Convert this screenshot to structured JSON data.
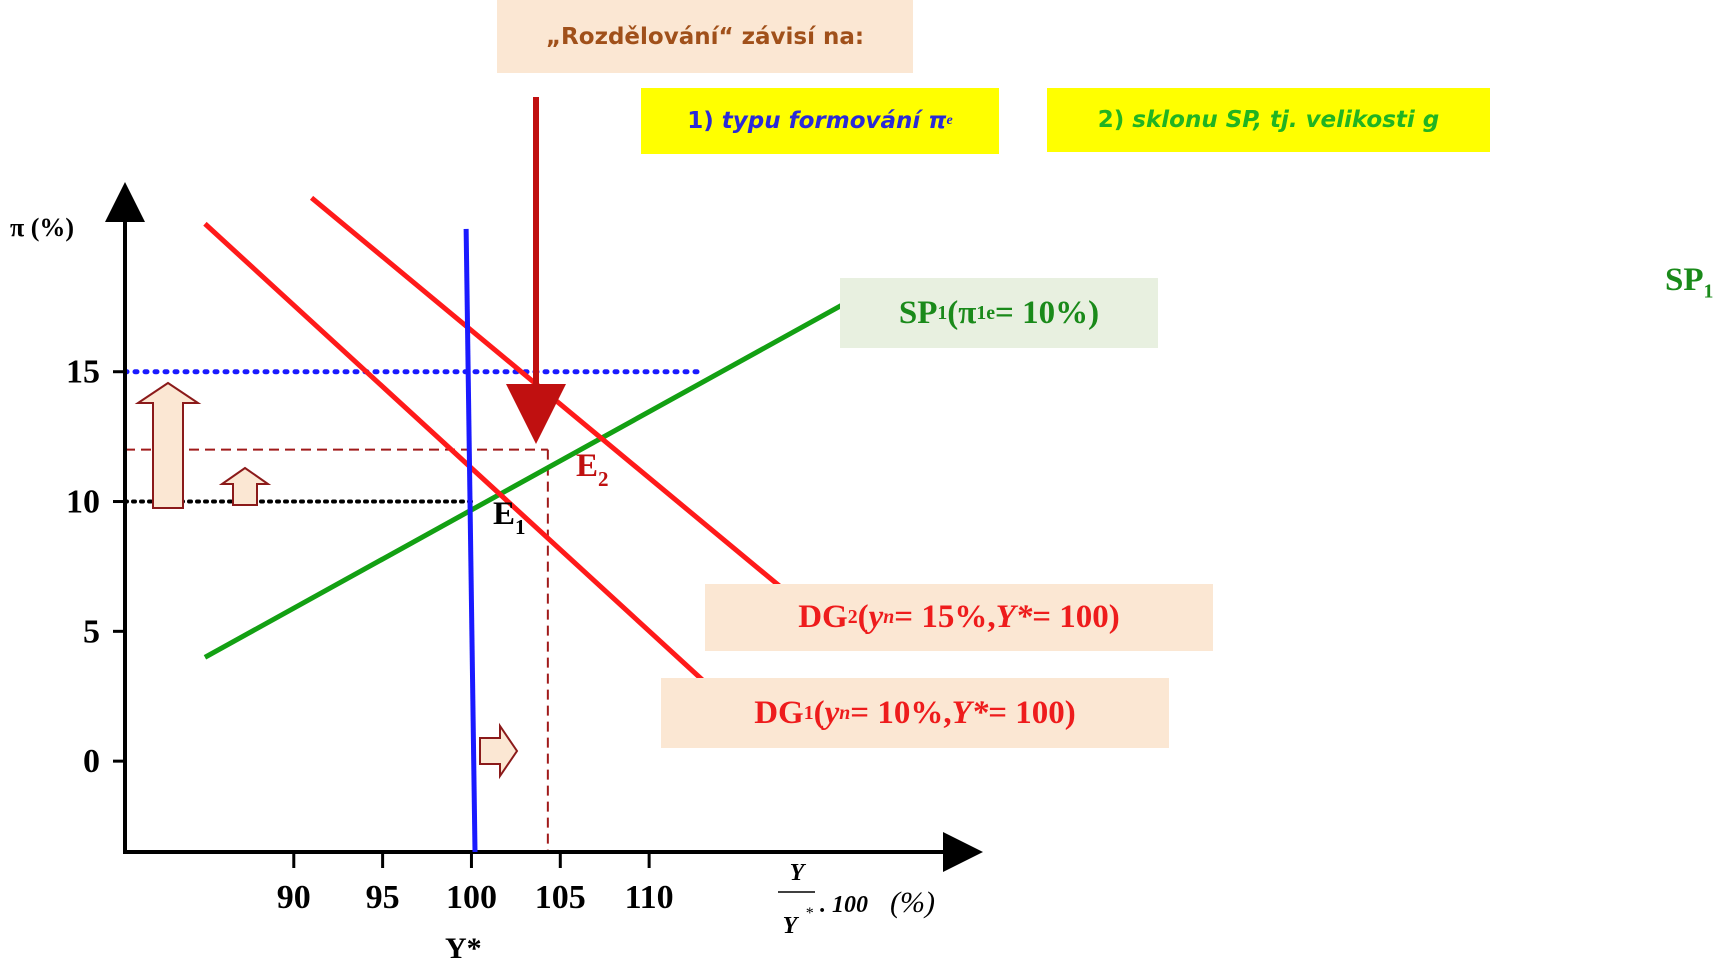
{
  "header": {
    "title": "„Rozdělování“ závisí na:",
    "point1_num": "1)",
    "point1_text": "typu formování π",
    "point1_sup": "e",
    "point2_num": "2)",
    "point2_text": "sklonu SP, tj. velikosti g"
  },
  "labels": {
    "sp1_main": "SP",
    "sp1_sub": "1",
    "sp1_open": " (π",
    "sp1_pi_sub": "1",
    "sp1_sup": "e",
    "sp1_rest": " = 10%)",
    "dg2_main": "DG",
    "dg2_sub": "2",
    "dg2_open": " (",
    "dg2_y": "y",
    "dg2_ysub": "n",
    "dg2_mid": " = 15%, ",
    "dg2_ystar": "Y*",
    "dg2_end": " = 100)",
    "dg1_main": "DG",
    "dg1_sub": "1",
    "dg1_open": " (",
    "dg1_y": "y",
    "dg1_ysub": "n",
    "dg1_mid": " = 10%, ",
    "dg1_ystar": "Y*",
    "dg1_end": " = 100)",
    "e1_main": "E",
    "e1_sub": "1",
    "e2_main": "E",
    "e2_sub": "2",
    "sp_edge_main": "SP",
    "sp_edge_sub": "1"
  },
  "colors": {
    "axis": "#000000",
    "sp_line": "#13a013",
    "dg_line": "#ff1a1a",
    "vertical_line": "#1a1aff",
    "down_arrow": "#c01010",
    "guide_dashed": "#a01a1a",
    "arrow_fill": "#fbe7d3",
    "arrow_stroke": "#8b1a1a"
  },
  "chart_data": {
    "type": "line",
    "title": "",
    "ylabel": "π (%)",
    "xlabel_frac_num": "Y",
    "xlabel_frac_den": "Y",
    "xlabel_frac_den_sup": "*",
    "xlabel_rest": ". 100",
    "xlabel_unit": "(%)",
    "x_ticks": [
      90,
      95,
      100,
      105,
      110
    ],
    "y_ticks": [
      0,
      5,
      10,
      15
    ],
    "x_tick_extra_label": "Y*",
    "x_tick_extra_sup": "*",
    "xlim": [
      80.5,
      132
    ],
    "ylim": [
      -3.5,
      22
    ],
    "series": [
      {
        "id": "sp1",
        "x": [
          85,
          122
        ],
        "y": [
          4,
          18
        ]
      },
      {
        "id": "dg1",
        "x": [
          85,
          114
        ],
        "y": [
          20.7,
          2.5
        ]
      },
      {
        "id": "dg2",
        "x": [
          91,
          119
        ],
        "y": [
          21.7,
          5.8
        ]
      },
      {
        "id": "vertical",
        "x": [
          99.7,
          100.2
        ],
        "y": [
          20.5,
          -3.5
        ]
      }
    ],
    "points": [
      {
        "name": "E1",
        "x": 100,
        "y": 10
      },
      {
        "name": "E2",
        "x": 104.3,
        "y": 12
      }
    ],
    "guides": [
      {
        "kind": "dotted-black",
        "y": 10,
        "x_from": 80.5,
        "x_to": 100
      },
      {
        "kind": "dotted-blue",
        "y": 15,
        "x_from": 80.5,
        "x_to": 113
      },
      {
        "kind": "dashed-red-h",
        "y": 12,
        "x_from": 80.5,
        "x_to": 104.3
      },
      {
        "kind": "dashed-red-v",
        "x": 104.3,
        "y_from": 12,
        "y_to": -3.5
      }
    ]
  }
}
